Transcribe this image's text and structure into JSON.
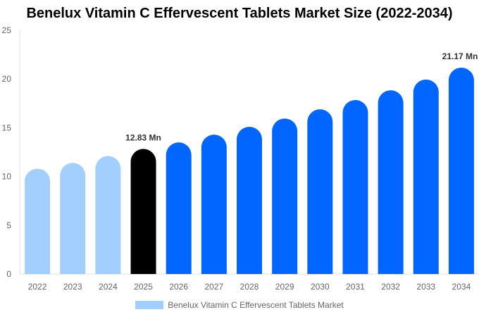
{
  "chart_data": {
    "type": "bar",
    "title": "Benelux Vitamin C Effervescent Tablets Market Size (2022-2034)",
    "categories": [
      "2022",
      "2023",
      "2024",
      "2025",
      "2026",
      "2027",
      "2028",
      "2029",
      "2030",
      "2031",
      "2032",
      "2033",
      "2034"
    ],
    "series": [
      {
        "name": "Benelux Vitamin C Effervescent Tablets Market",
        "values": [
          10.8,
          11.4,
          12.1,
          12.83,
          13.5,
          14.3,
          15.1,
          15.95,
          16.9,
          17.85,
          18.85,
          19.95,
          21.17
        ]
      }
    ],
    "ylim": [
      0,
      25
    ],
    "yticks": [
      0,
      5,
      10,
      15,
      20,
      25
    ],
    "data_labels": {
      "3": "12.83 Mn",
      "12": "21.17 Mn"
    },
    "colors": {
      "historical": "#a3cfff",
      "current": "#000000",
      "forecast": "#0066ff"
    },
    "legend_position": "bottom",
    "grid": false
  }
}
